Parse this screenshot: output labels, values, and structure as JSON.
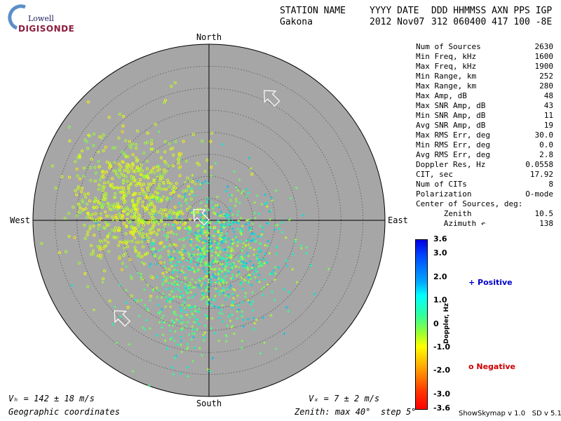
{
  "logo": {
    "brand": "Lowell",
    "name": "DIGISONDE"
  },
  "header": {
    "columns": [
      "STATION NAME",
      "YYYY DATE",
      "DDD HHMMSS AXN PPS IGP"
    ],
    "values": [
      "Gakona",
      "2012 Nov07",
      "312 060400 417 100 -8E"
    ]
  },
  "stats": [
    {
      "label": "Num of Sources",
      "value": "2630"
    },
    {
      "label": "Min Freq, kHz",
      "value": "1600"
    },
    {
      "label": "Max Freq, kHz",
      "value": "1900"
    },
    {
      "label": "Min Range, km",
      "value": "252"
    },
    {
      "label": "Max Range, km",
      "value": "280"
    },
    {
      "label": "Max Amp, dB",
      "value": "48"
    },
    {
      "label": "Max SNR Amp, dB",
      "value": "43"
    },
    {
      "label": "Min SNR Amp, dB",
      "value": "11"
    },
    {
      "label": "Avg SNR Amp, dB",
      "value": "19"
    },
    {
      "label": "Max RMS Err, deg",
      "value": "30.0"
    },
    {
      "label": "Min RMS Err, deg",
      "value": "0.0"
    },
    {
      "label": "Avg RMS Err, deg",
      "value": "2.8"
    },
    {
      "label": "Doppler Res, Hz",
      "value": "0.0558"
    },
    {
      "label": "CIT, sec",
      "value": "17.92"
    },
    {
      "label": "Num of CITs",
      "value": "8"
    },
    {
      "label": "Polarization",
      "value": "O-mode"
    },
    {
      "label": "Center of Sources, deg:",
      "value": ""
    },
    {
      "label": "      Zenith",
      "value": "10.5"
    },
    {
      "label": "      Azimuth ↶",
      "value": "138"
    }
  ],
  "chart_data": {
    "type": "scatter",
    "projection": "polar skymap",
    "directions": {
      "north": "North",
      "south": "South",
      "east": "East",
      "west": "West"
    },
    "zenith_max_deg": 40,
    "zenith_step_deg": 5,
    "series": [
      {
        "name": "Positive",
        "marker": "+",
        "clusters": [
          {
            "center_east_west_deg": 1,
            "center_north_south_deg": -8,
            "spread_deg": [
              8,
              8
            ],
            "count": 900,
            "doppler_hz": [
              -0.5,
              1.8
            ]
          },
          {
            "center_east_west_deg": -6,
            "center_north_south_deg": -20,
            "spread_deg": [
              6,
              6
            ],
            "count": 160,
            "doppler_hz": [
              0,
              1.2
            ]
          }
        ]
      },
      {
        "name": "Negative",
        "marker": "o",
        "clusters": [
          {
            "center_east_west_deg": -17,
            "center_north_south_deg": 4,
            "spread_deg": [
              7,
              8
            ],
            "count": 700,
            "doppler_hz": [
              -1.2,
              0.2
            ]
          }
        ]
      }
    ],
    "velocity_arrows": [
      {
        "east_west_deg": 14,
        "north_south_deg": 28,
        "dx": -1,
        "dy": 1
      },
      {
        "east_west_deg": -2,
        "north_south_deg": 1,
        "dx": -1,
        "dy": 1
      },
      {
        "east_west_deg": -20,
        "north_south_deg": -22,
        "dx": -1,
        "dy": 1
      }
    ],
    "colorbar": {
      "label": "Doppler, Hz",
      "range": [
        -3.6,
        3.6
      ],
      "ticks": [
        "3.6",
        "3.0",
        "2.0",
        "1.0",
        "0",
        "-1.0",
        "-2.0",
        "-3.0",
        "-3.6"
      ],
      "tick_values": [
        3.6,
        3.0,
        2.0,
        1.0,
        0,
        -1.0,
        -2.0,
        -3.0,
        -3.6
      ]
    },
    "legend": {
      "positive": "+ Positive",
      "negative": "o Negative"
    }
  },
  "footer": {
    "vh": "Vₕ = 142 ± 18 m/s",
    "vz": "Vₓ = 7 ± 2 m/s",
    "coords": "Geographic coordinates",
    "zenith": "Zenith: max 40°  step 5°",
    "version": "ShowSkymap v 1.0   SD v 5.1"
  }
}
